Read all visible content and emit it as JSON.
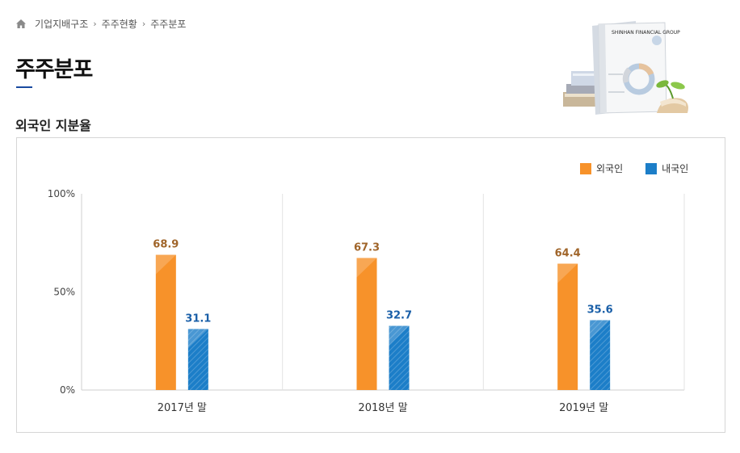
{
  "breadcrumb": {
    "items": [
      "기업지배구조",
      "주주현황",
      "주주분포"
    ],
    "separator": "›"
  },
  "page": {
    "title": "주주분포",
    "section_title": "외국인 지분율"
  },
  "illustration": {
    "text": "SHINHAN FINANCIAL GROUP"
  },
  "colors": {
    "foreign": "#f7922a",
    "domestic": "#1c7ec8",
    "foreign_label": "#a0652a",
    "domestic_label": "#1a5fa8",
    "title_accent": "#1a4aa0"
  },
  "chart_data": {
    "type": "bar",
    "title": "",
    "xlabel": "",
    "ylabel": "",
    "categories": [
      "2017년 말",
      "2018년 말",
      "2019년 말"
    ],
    "series": [
      {
        "name": "외국인",
        "values": [
          68.9,
          67.3,
          64.4
        ]
      },
      {
        "name": "내국인",
        "values": [
          31.1,
          32.7,
          35.6
        ]
      }
    ],
    "ylim": [
      0,
      100
    ],
    "yticks": [
      0,
      50,
      100
    ],
    "ytick_labels": [
      "0%",
      "50%",
      "100%"
    ],
    "legend_position": "top-right",
    "grid": false
  }
}
